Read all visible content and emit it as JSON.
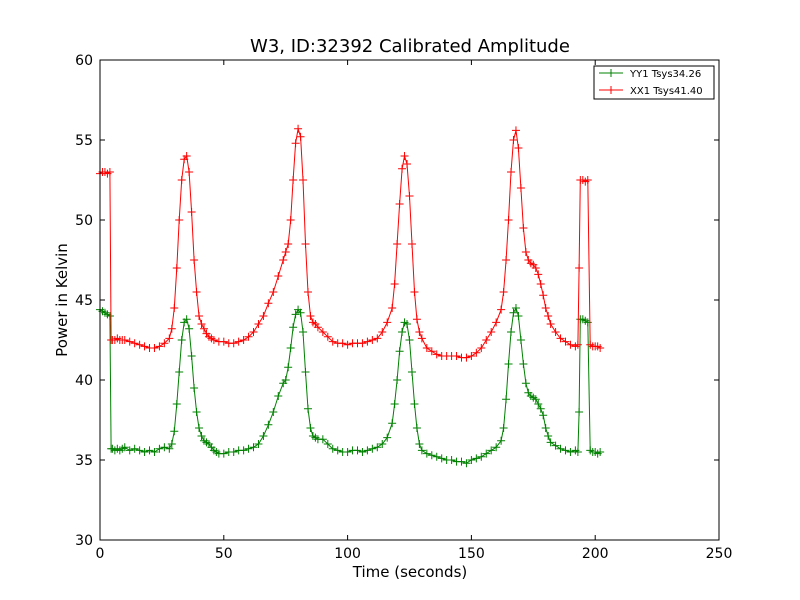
{
  "chart_data": {
    "type": "line",
    "title": "W3, ID:32392 Calibrated Amplitude",
    "xlabel": "Time (seconds)",
    "ylabel": "Power in Kelvin",
    "xlim": [
      0,
      250
    ],
    "ylim": [
      30,
      60
    ],
    "xticks": [
      "0",
      "50",
      "100",
      "150",
      "200",
      "250"
    ],
    "yticks": [
      "30",
      "35",
      "40",
      "45",
      "50",
      "55",
      "60"
    ],
    "grid": false,
    "legend_position": "top-right",
    "marker": "+",
    "series": [
      {
        "name": "YY1 Tsys34.26",
        "color": "#008000",
        "points": [
          [
            0,
            44.4
          ],
          [
            1,
            44.3
          ],
          [
            2,
            44.2
          ],
          [
            3,
            44.1
          ],
          [
            4,
            44.0
          ],
          [
            4.5,
            35.7
          ],
          [
            5,
            35.7
          ],
          [
            6,
            35.6
          ],
          [
            7,
            35.7
          ],
          [
            8,
            35.6
          ],
          [
            9,
            35.7
          ],
          [
            10,
            35.8
          ],
          [
            12,
            35.6
          ],
          [
            14,
            35.7
          ],
          [
            16,
            35.6
          ],
          [
            18,
            35.5
          ],
          [
            20,
            35.6
          ],
          [
            22,
            35.5
          ],
          [
            24,
            35.7
          ],
          [
            26,
            35.8
          ],
          [
            28,
            35.7
          ],
          [
            29,
            36.0
          ],
          [
            30,
            36.8
          ],
          [
            31,
            38.5
          ],
          [
            32,
            40.5
          ],
          [
            33,
            42.5
          ],
          [
            34,
            43.6
          ],
          [
            35,
            43.8
          ],
          [
            36,
            43.2
          ],
          [
            37,
            41.5
          ],
          [
            38,
            39.5
          ],
          [
            39,
            38.0
          ],
          [
            40,
            37.0
          ],
          [
            41,
            36.5
          ],
          [
            42,
            36.2
          ],
          [
            43,
            36.1
          ],
          [
            44,
            36.0
          ],
          [
            45,
            35.8
          ],
          [
            46,
            35.6
          ],
          [
            47,
            35.5
          ],
          [
            48,
            35.4
          ],
          [
            50,
            35.4
          ],
          [
            52,
            35.5
          ],
          [
            54,
            35.5
          ],
          [
            56,
            35.6
          ],
          [
            58,
            35.6
          ],
          [
            60,
            35.7
          ],
          [
            62,
            35.8
          ],
          [
            64,
            36.0
          ],
          [
            66,
            36.5
          ],
          [
            68,
            37.2
          ],
          [
            70,
            38.0
          ],
          [
            72,
            39.0
          ],
          [
            74,
            39.8
          ],
          [
            75,
            40.0
          ],
          [
            76,
            40.8
          ],
          [
            77,
            42.0
          ],
          [
            78,
            43.3
          ],
          [
            79,
            44.1
          ],
          [
            80,
            44.4
          ],
          [
            81,
            44.2
          ],
          [
            82,
            43.0
          ],
          [
            83,
            40.5
          ],
          [
            84,
            38.2
          ],
          [
            85,
            37.0
          ],
          [
            86,
            36.5
          ],
          [
            87,
            36.4
          ],
          [
            88,
            36.3
          ],
          [
            90,
            36.3
          ],
          [
            92,
            36.0
          ],
          [
            94,
            35.7
          ],
          [
            96,
            35.6
          ],
          [
            98,
            35.5
          ],
          [
            100,
            35.5
          ],
          [
            102,
            35.6
          ],
          [
            104,
            35.6
          ],
          [
            106,
            35.5
          ],
          [
            108,
            35.6
          ],
          [
            110,
            35.7
          ],
          [
            112,
            35.8
          ],
          [
            114,
            36.0
          ],
          [
            116,
            36.4
          ],
          [
            118,
            37.3
          ],
          [
            119,
            38.5
          ],
          [
            120,
            40.0
          ],
          [
            121,
            41.8
          ],
          [
            122,
            43.0
          ],
          [
            123,
            43.6
          ],
          [
            124,
            43.5
          ],
          [
            125,
            42.5
          ],
          [
            126,
            40.5
          ],
          [
            127,
            38.5
          ],
          [
            128,
            37.0
          ],
          [
            129,
            36.0
          ],
          [
            130,
            35.6
          ],
          [
            132,
            35.4
          ],
          [
            134,
            35.3
          ],
          [
            136,
            35.2
          ],
          [
            138,
            35.1
          ],
          [
            140,
            35.0
          ],
          [
            142,
            35.0
          ],
          [
            144,
            34.9
          ],
          [
            146,
            34.9
          ],
          [
            148,
            34.8
          ],
          [
            150,
            35.0
          ],
          [
            152,
            35.1
          ],
          [
            154,
            35.2
          ],
          [
            156,
            35.4
          ],
          [
            158,
            35.6
          ],
          [
            160,
            35.8
          ],
          [
            162,
            36.2
          ],
          [
            163,
            37.0
          ],
          [
            164,
            38.8
          ],
          [
            165,
            41.0
          ],
          [
            166,
            43.0
          ],
          [
            167,
            44.2
          ],
          [
            168,
            44.5
          ],
          [
            169,
            44.0
          ],
          [
            170,
            42.5
          ],
          [
            171,
            41.0
          ],
          [
            172,
            39.8
          ],
          [
            173,
            39.2
          ],
          [
            174,
            39.0
          ],
          [
            175,
            38.9
          ],
          [
            176,
            38.8
          ],
          [
            177,
            38.5
          ],
          [
            178,
            38.2
          ],
          [
            179,
            37.8
          ],
          [
            180,
            37.0
          ],
          [
            181,
            36.5
          ],
          [
            182,
            36.1
          ],
          [
            184,
            35.9
          ],
          [
            186,
            35.7
          ],
          [
            188,
            35.6
          ],
          [
            190,
            35.5
          ],
          [
            192,
            35.6
          ],
          [
            193,
            35.5
          ],
          [
            193.5,
            38.0
          ],
          [
            194,
            43.8
          ],
          [
            195,
            43.8
          ],
          [
            196,
            43.7
          ],
          [
            197,
            43.6
          ],
          [
            198,
            35.6
          ],
          [
            199,
            35.5
          ],
          [
            200,
            35.5
          ],
          [
            201,
            35.4
          ],
          [
            202,
            35.5
          ]
        ]
      },
      {
        "name": "XX1 Tsys41.40",
        "color": "#ff0000",
        "points": [
          [
            0,
            52.9
          ],
          [
            1,
            53.0
          ],
          [
            2,
            53.0
          ],
          [
            3,
            52.9
          ],
          [
            4,
            53.0
          ],
          [
            4.5,
            42.5
          ],
          [
            5,
            42.5
          ],
          [
            6,
            42.5
          ],
          [
            7,
            42.6
          ],
          [
            8,
            42.5
          ],
          [
            9,
            42.5
          ],
          [
            10,
            42.5
          ],
          [
            12,
            42.4
          ],
          [
            14,
            42.3
          ],
          [
            16,
            42.2
          ],
          [
            18,
            42.1
          ],
          [
            20,
            42.0
          ],
          [
            22,
            42.0
          ],
          [
            24,
            42.1
          ],
          [
            26,
            42.3
          ],
          [
            28,
            42.6
          ],
          [
            29,
            43.2
          ],
          [
            30,
            44.5
          ],
          [
            31,
            47.0
          ],
          [
            32,
            50.0
          ],
          [
            33,
            52.5
          ],
          [
            34,
            53.8
          ],
          [
            35,
            54.0
          ],
          [
            36,
            53.0
          ],
          [
            37,
            50.5
          ],
          [
            38,
            47.5
          ],
          [
            39,
            45.5
          ],
          [
            40,
            44.0
          ],
          [
            41,
            43.5
          ],
          [
            42,
            43.2
          ],
          [
            43,
            42.9
          ],
          [
            44,
            42.7
          ],
          [
            45,
            42.6
          ],
          [
            46,
            42.5
          ],
          [
            48,
            42.4
          ],
          [
            50,
            42.4
          ],
          [
            52,
            42.3
          ],
          [
            54,
            42.3
          ],
          [
            56,
            42.4
          ],
          [
            58,
            42.5
          ],
          [
            60,
            42.7
          ],
          [
            62,
            43.0
          ],
          [
            64,
            43.5
          ],
          [
            66,
            44.0
          ],
          [
            68,
            44.8
          ],
          [
            70,
            45.5
          ],
          [
            72,
            46.5
          ],
          [
            74,
            47.5
          ],
          [
            75,
            48.0
          ],
          [
            76,
            48.5
          ],
          [
            77,
            50.0
          ],
          [
            78,
            52.5
          ],
          [
            79,
            54.8
          ],
          [
            80,
            55.7
          ],
          [
            81,
            55.2
          ],
          [
            82,
            52.5
          ],
          [
            83,
            48.5
          ],
          [
            84,
            45.5
          ],
          [
            85,
            44.0
          ],
          [
            86,
            43.6
          ],
          [
            87,
            43.5
          ],
          [
            88,
            43.3
          ],
          [
            90,
            43.0
          ],
          [
            92,
            42.7
          ],
          [
            94,
            42.4
          ],
          [
            96,
            42.3
          ],
          [
            98,
            42.3
          ],
          [
            100,
            42.2
          ],
          [
            102,
            42.3
          ],
          [
            104,
            42.3
          ],
          [
            106,
            42.3
          ],
          [
            108,
            42.4
          ],
          [
            110,
            42.5
          ],
          [
            112,
            42.6
          ],
          [
            114,
            43.0
          ],
          [
            116,
            43.6
          ],
          [
            118,
            44.5
          ],
          [
            119,
            46.0
          ],
          [
            120,
            48.5
          ],
          [
            121,
            51.0
          ],
          [
            122,
            53.2
          ],
          [
            123,
            54.0
          ],
          [
            124,
            53.5
          ],
          [
            125,
            51.5
          ],
          [
            126,
            48.5
          ],
          [
            127,
            45.5
          ],
          [
            128,
            43.8
          ],
          [
            129,
            43.0
          ],
          [
            130,
            42.6
          ],
          [
            132,
            42.0
          ],
          [
            134,
            41.8
          ],
          [
            136,
            41.6
          ],
          [
            138,
            41.5
          ],
          [
            140,
            41.5
          ],
          [
            142,
            41.5
          ],
          [
            144,
            41.5
          ],
          [
            146,
            41.4
          ],
          [
            148,
            41.4
          ],
          [
            150,
            41.5
          ],
          [
            152,
            41.7
          ],
          [
            154,
            42.0
          ],
          [
            156,
            42.5
          ],
          [
            158,
            43.0
          ],
          [
            160,
            43.6
          ],
          [
            162,
            44.4
          ],
          [
            163,
            45.5
          ],
          [
            164,
            47.5
          ],
          [
            165,
            50.0
          ],
          [
            166,
            53.0
          ],
          [
            167,
            55.0
          ],
          [
            168,
            55.6
          ],
          [
            169,
            54.5
          ],
          [
            170,
            52.0
          ],
          [
            171,
            49.5
          ],
          [
            172,
            48.0
          ],
          [
            173,
            47.5
          ],
          [
            174,
            47.3
          ],
          [
            175,
            47.2
          ],
          [
            176,
            47.0
          ],
          [
            177,
            46.6
          ],
          [
            178,
            46.0
          ],
          [
            179,
            45.3
          ],
          [
            180,
            44.5
          ],
          [
            181,
            44.0
          ],
          [
            182,
            43.5
          ],
          [
            184,
            43.0
          ],
          [
            186,
            42.6
          ],
          [
            188,
            42.4
          ],
          [
            190,
            42.2
          ],
          [
            192,
            42.1
          ],
          [
            193,
            42.2
          ],
          [
            193.5,
            47.0
          ],
          [
            194,
            52.5
          ],
          [
            195,
            52.5
          ],
          [
            196,
            52.4
          ],
          [
            197,
            52.5
          ],
          [
            198,
            42.2
          ],
          [
            199,
            42.1
          ],
          [
            200,
            42.1
          ],
          [
            201,
            42.1
          ],
          [
            202,
            42.0
          ]
        ]
      }
    ]
  }
}
